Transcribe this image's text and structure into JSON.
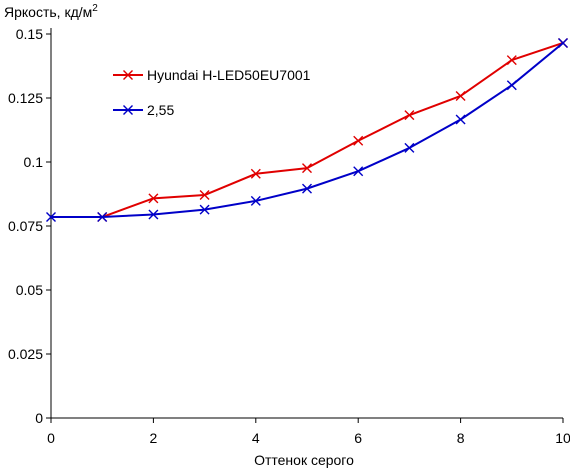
{
  "chart_data": {
    "type": "line",
    "title": "",
    "ylabel": "Яркость, кд/м",
    "ylabel_superscript": "2",
    "xlabel": "Оттенок серого",
    "xlim": [
      0,
      10
    ],
    "ylim": [
      0,
      0.15
    ],
    "x_ticks": [
      0,
      2,
      4,
      6,
      8,
      10
    ],
    "x_tick_labels": [
      "0",
      "2",
      "4",
      "6",
      "8",
      "10"
    ],
    "y_ticks": [
      0,
      0.025,
      0.05,
      0.075,
      0.1,
      0.125,
      0.15
    ],
    "y_tick_labels": [
      "0",
      "0.025",
      "0.05",
      "0.075",
      "0.1",
      "0.125",
      "0.15"
    ],
    "grid": false,
    "legend_position": "upper-left",
    "series": [
      {
        "name": "Hyundai H-LED50EU7001",
        "color": "#e00000",
        "marker": "x",
        "x": [
          1,
          2,
          3,
          4,
          5,
          6,
          7,
          8,
          9,
          10
        ],
        "values": [
          0.0785,
          0.0858,
          0.0871,
          0.0954,
          0.0976,
          0.1083,
          0.1183,
          0.1258,
          0.1398,
          0.1465
        ]
      },
      {
        "name": "2,55",
        "color": "#0000c8",
        "marker": "x",
        "x": [
          0,
          1,
          2,
          3,
          4,
          5,
          6,
          7,
          8,
          9,
          10
        ],
        "values": [
          0.0785,
          0.0785,
          0.0795,
          0.0814,
          0.0848,
          0.0896,
          0.0964,
          0.1055,
          0.1166,
          0.13,
          0.1465
        ]
      }
    ]
  }
}
